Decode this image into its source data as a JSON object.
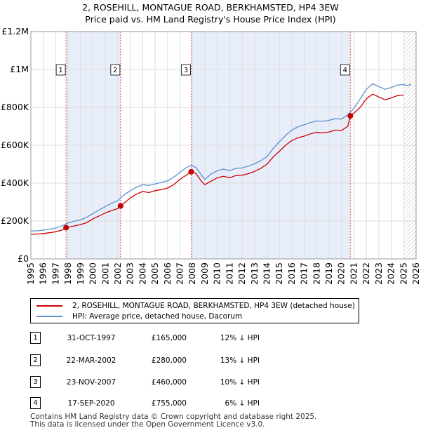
{
  "title_line1": "2, ROSEHILL, MONTAGUE ROAD, BERKHAMSTED, HP4 3EW",
  "title_line2": "Price paid vs. HM Land Registry's House Price Index (HPI)",
  "chart_data": {
    "type": "line",
    "title": "2, ROSEHILL, MONTAGUE ROAD, BERKHAMSTED, HP4 3EW\nPrice paid vs. HM Land Registry's House Price Index (HPI)",
    "xlim": [
      1995,
      2026
    ],
    "ylim": [
      0,
      1200000
    ],
    "x_ticks": [
      "1995",
      "1996",
      "1997",
      "1998",
      "1999",
      "2000",
      "2001",
      "2002",
      "2003",
      "2004",
      "2005",
      "2006",
      "2007",
      "2008",
      "2009",
      "2010",
      "2011",
      "2012",
      "2013",
      "2014",
      "2015",
      "2016",
      "2017",
      "2018",
      "2019",
      "2020",
      "2021",
      "2022",
      "2023",
      "2024",
      "2025",
      "2026"
    ],
    "y_ticks": [
      {
        "value": 0,
        "label": "£0"
      },
      {
        "value": 200000,
        "label": "£200K"
      },
      {
        "value": 400000,
        "label": "£400K"
      },
      {
        "value": 600000,
        "label": "£600K"
      },
      {
        "value": 800000,
        "label": "£800K"
      },
      {
        "value": 1000000,
        "label": "£1M"
      },
      {
        "value": 1200000,
        "label": "£1.2M"
      }
    ],
    "grid": true,
    "shaded_periods": [
      [
        1997.83,
        2002.22
      ],
      [
        2007.9,
        2020.71
      ]
    ],
    "forecast_start": 2025.0,
    "series": [
      {
        "name": "2, ROSEHILL, MONTAGUE ROAD, BERKHAMSTED, HP4 3EW (detached house)",
        "color": "#cc0000",
        "x": [
          1995.0,
          1995.5,
          1996.0,
          1996.5,
          1997.0,
          1997.5,
          1997.83,
          1998.5,
          1999.0,
          1999.5,
          2000.0,
          2000.5,
          2001.0,
          2001.5,
          2002.0,
          2002.22,
          2002.6,
          2003.0,
          2003.5,
          2004.0,
          2004.5,
          2005.0,
          2005.5,
          2006.0,
          2006.5,
          2007.0,
          2007.5,
          2007.9,
          2008.3,
          2008.7,
          2009.0,
          2009.5,
          2010.0,
          2010.5,
          2011.0,
          2011.5,
          2012.0,
          2012.5,
          2013.0,
          2013.5,
          2014.0,
          2014.5,
          2015.0,
          2015.5,
          2016.0,
          2016.5,
          2017.0,
          2017.5,
          2018.0,
          2018.5,
          2019.0,
          2019.5,
          2020.0,
          2020.5,
          2020.71,
          2021.0,
          2021.5,
          2022.0,
          2022.5,
          2023.0,
          2023.5,
          2024.0,
          2024.5,
          2025.0
        ],
        "y": [
          130000,
          131000,
          134000,
          138000,
          143000,
          152000,
          165000,
          174000,
          181000,
          192000,
          212000,
          227000,
          243000,
          255000,
          266000,
          280000,
          300000,
          322000,
          342000,
          356000,
          350000,
          360000,
          366000,
          374000,
          392000,
          420000,
          442000,
          460000,
          450000,
          412000,
          392000,
          410000,
          428000,
          436000,
          428000,
          440000,
          441000,
          450000,
          462000,
          478000,
          500000,
          538000,
          568000,
          600000,
          625000,
          640000,
          648000,
          660000,
          668000,
          665000,
          670000,
          680000,
          678000,
          700000,
          755000,
          770000,
          800000,
          845000,
          870000,
          855000,
          840000,
          850000,
          862000,
          865000
        ]
      },
      {
        "name": "HPI: Average price, detached house, Dacorum",
        "color": "#5b8fcc",
        "x": [
          1995.0,
          1995.5,
          1996.0,
          1996.5,
          1997.0,
          1997.5,
          1998.0,
          1998.5,
          1999.0,
          1999.5,
          2000.0,
          2000.5,
          2001.0,
          2001.5,
          2002.0,
          2002.5,
          2003.0,
          2003.5,
          2004.0,
          2004.5,
          2005.0,
          2005.5,
          2006.0,
          2006.5,
          2007.0,
          2007.5,
          2007.9,
          2008.3,
          2008.7,
          2009.0,
          2009.5,
          2010.0,
          2010.5,
          2011.0,
          2011.5,
          2012.0,
          2012.5,
          2013.0,
          2013.5,
          2014.0,
          2014.5,
          2015.0,
          2015.5,
          2016.0,
          2016.5,
          2017.0,
          2017.5,
          2018.0,
          2018.5,
          2019.0,
          2019.5,
          2020.0,
          2020.5,
          2021.0,
          2021.5,
          2022.0,
          2022.5,
          2023.0,
          2023.5,
          2024.0,
          2024.5,
          2025.0,
          2025.3,
          2025.6
        ],
        "y": [
          147000,
          148000,
          152000,
          157000,
          163000,
          175000,
          190000,
          199000,
          206000,
          220000,
          240000,
          258000,
          277000,
          293000,
          308000,
          338000,
          360000,
          378000,
          392000,
          388000,
          396000,
          404000,
          412000,
          432000,
          457000,
          482000,
          495000,
          482000,
          445000,
          420000,
          448000,
          465000,
          474000,
          466000,
          478000,
          480000,
          490000,
          502000,
          519000,
          540000,
          583000,
          618000,
          652000,
          680000,
          698000,
          708000,
          720000,
          728000,
          726000,
          732000,
          740000,
          738000,
          760000,
          795000,
          845000,
          895000,
          925000,
          910000,
          895000,
          905000,
          918000,
          920000,
          915000,
          922000
        ]
      }
    ],
    "markers": [
      {
        "label": "1",
        "x": 1997.83,
        "y": 165000
      },
      {
        "label": "2",
        "x": 2002.22,
        "y": 280000
      },
      {
        "label": "3",
        "x": 2007.9,
        "y": 460000
      },
      {
        "label": "4",
        "x": 2020.71,
        "y": 755000
      }
    ]
  },
  "legend": [
    {
      "label": "2, ROSEHILL, MONTAGUE ROAD, BERKHAMSTED, HP4 3EW (detached house)",
      "color": "#cc0000"
    },
    {
      "label": "HPI: Average price, detached house, Dacorum",
      "color": "#5b8fcc"
    }
  ],
  "sales": [
    {
      "num": "1",
      "date": "31-OCT-1997",
      "price": "£165,000",
      "hpi": "12% ↓ HPI"
    },
    {
      "num": "2",
      "date": "22-MAR-2002",
      "price": "£280,000",
      "hpi": "13% ↓ HPI"
    },
    {
      "num": "3",
      "date": "23-NOV-2007",
      "price": "£460,000",
      "hpi": "10% ↓ HPI"
    },
    {
      "num": "4",
      "date": "17-SEP-2020",
      "price": "£755,000",
      "hpi": "6% ↓ HPI"
    }
  ],
  "footer_line1": "Contains HM Land Registry data © Crown copyright and database right 2025.",
  "footer_line2": "This data is licensed under the Open Government Licence v3.0."
}
